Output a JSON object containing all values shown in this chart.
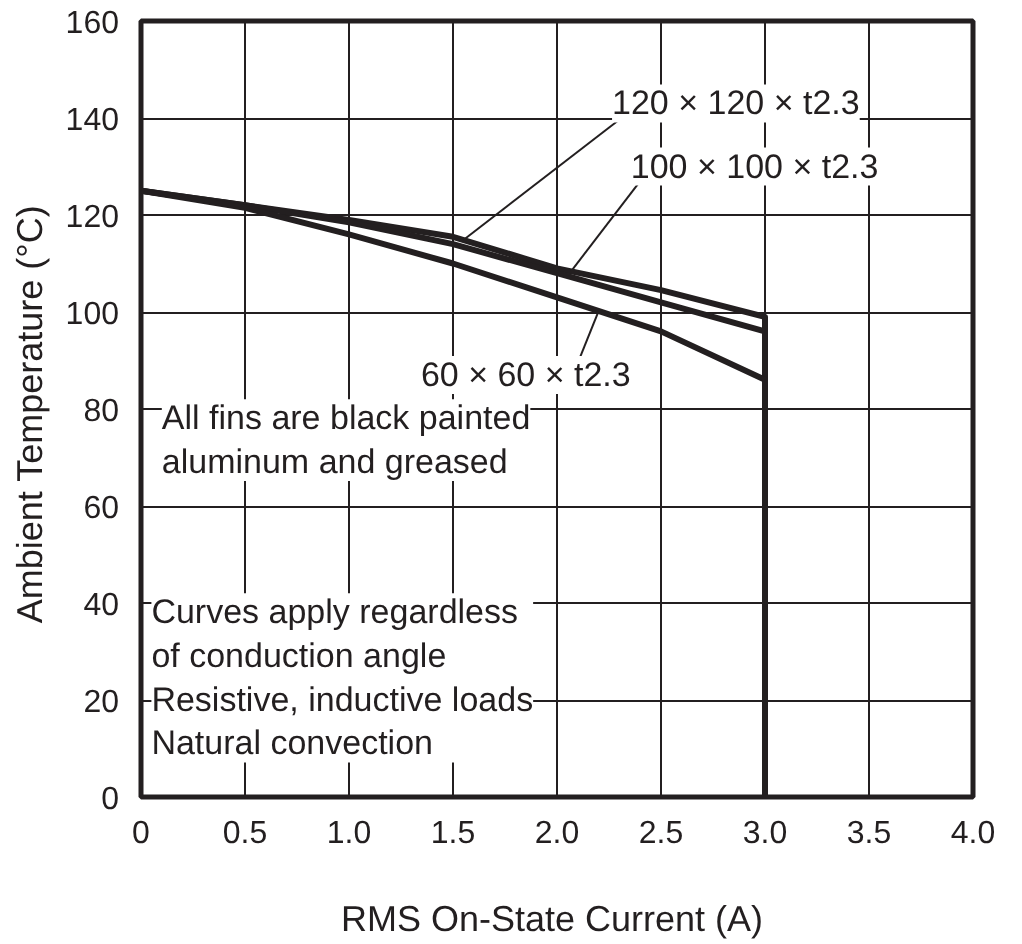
{
  "chart_data": {
    "type": "line",
    "xlabel": "RMS On-State Current  (A)",
    "ylabel": "Ambient Temperature  (°C)",
    "xlim": [
      0,
      4
    ],
    "ylim": [
      0,
      160
    ],
    "xticks": [
      0,
      0.5,
      {
        "value": 1,
        "label": "1.0"
      },
      1.5,
      {
        "value": 2,
        "label": "2.0"
      },
      2.5,
      {
        "value": 3,
        "label": "3.0"
      },
      3.5,
      {
        "value": 4,
        "label": "4.0"
      }
    ],
    "yticks": [
      0,
      20,
      40,
      60,
      80,
      100,
      120,
      140,
      160
    ],
    "grid": true,
    "marker": "none",
    "line_style": "solid",
    "series": [
      {
        "name": "120 × 120 × t2.3",
        "color": "#231f20",
        "x": [
          0,
          0.5,
          1.0,
          1.5,
          2.0,
          2.5,
          3.0,
          3.0
        ],
        "values": [
          125,
          122,
          119,
          115.5,
          109,
          104.5,
          99,
          0
        ]
      },
      {
        "name": "100 × 100 × t2.3",
        "color": "#231f20",
        "x": [
          0,
          0.5,
          1.0,
          1.5,
          2.0,
          2.5,
          3.0
        ],
        "values": [
          125,
          122,
          118.5,
          114,
          108,
          102,
          96
        ]
      },
      {
        "name": "60 × 60 × t2.3",
        "color": "#231f20",
        "x": [
          0,
          0.5,
          1.0,
          1.5,
          2.0,
          2.5,
          3.0
        ],
        "values": [
          125,
          121.5,
          116,
          110,
          103,
          96,
          86
        ]
      }
    ],
    "annotations": [
      "All fins are black painted\naluminum and greased",
      "Curves apply regardless\nof conduction angle\nResistive, inductive loads\nNatural convection"
    ]
  }
}
